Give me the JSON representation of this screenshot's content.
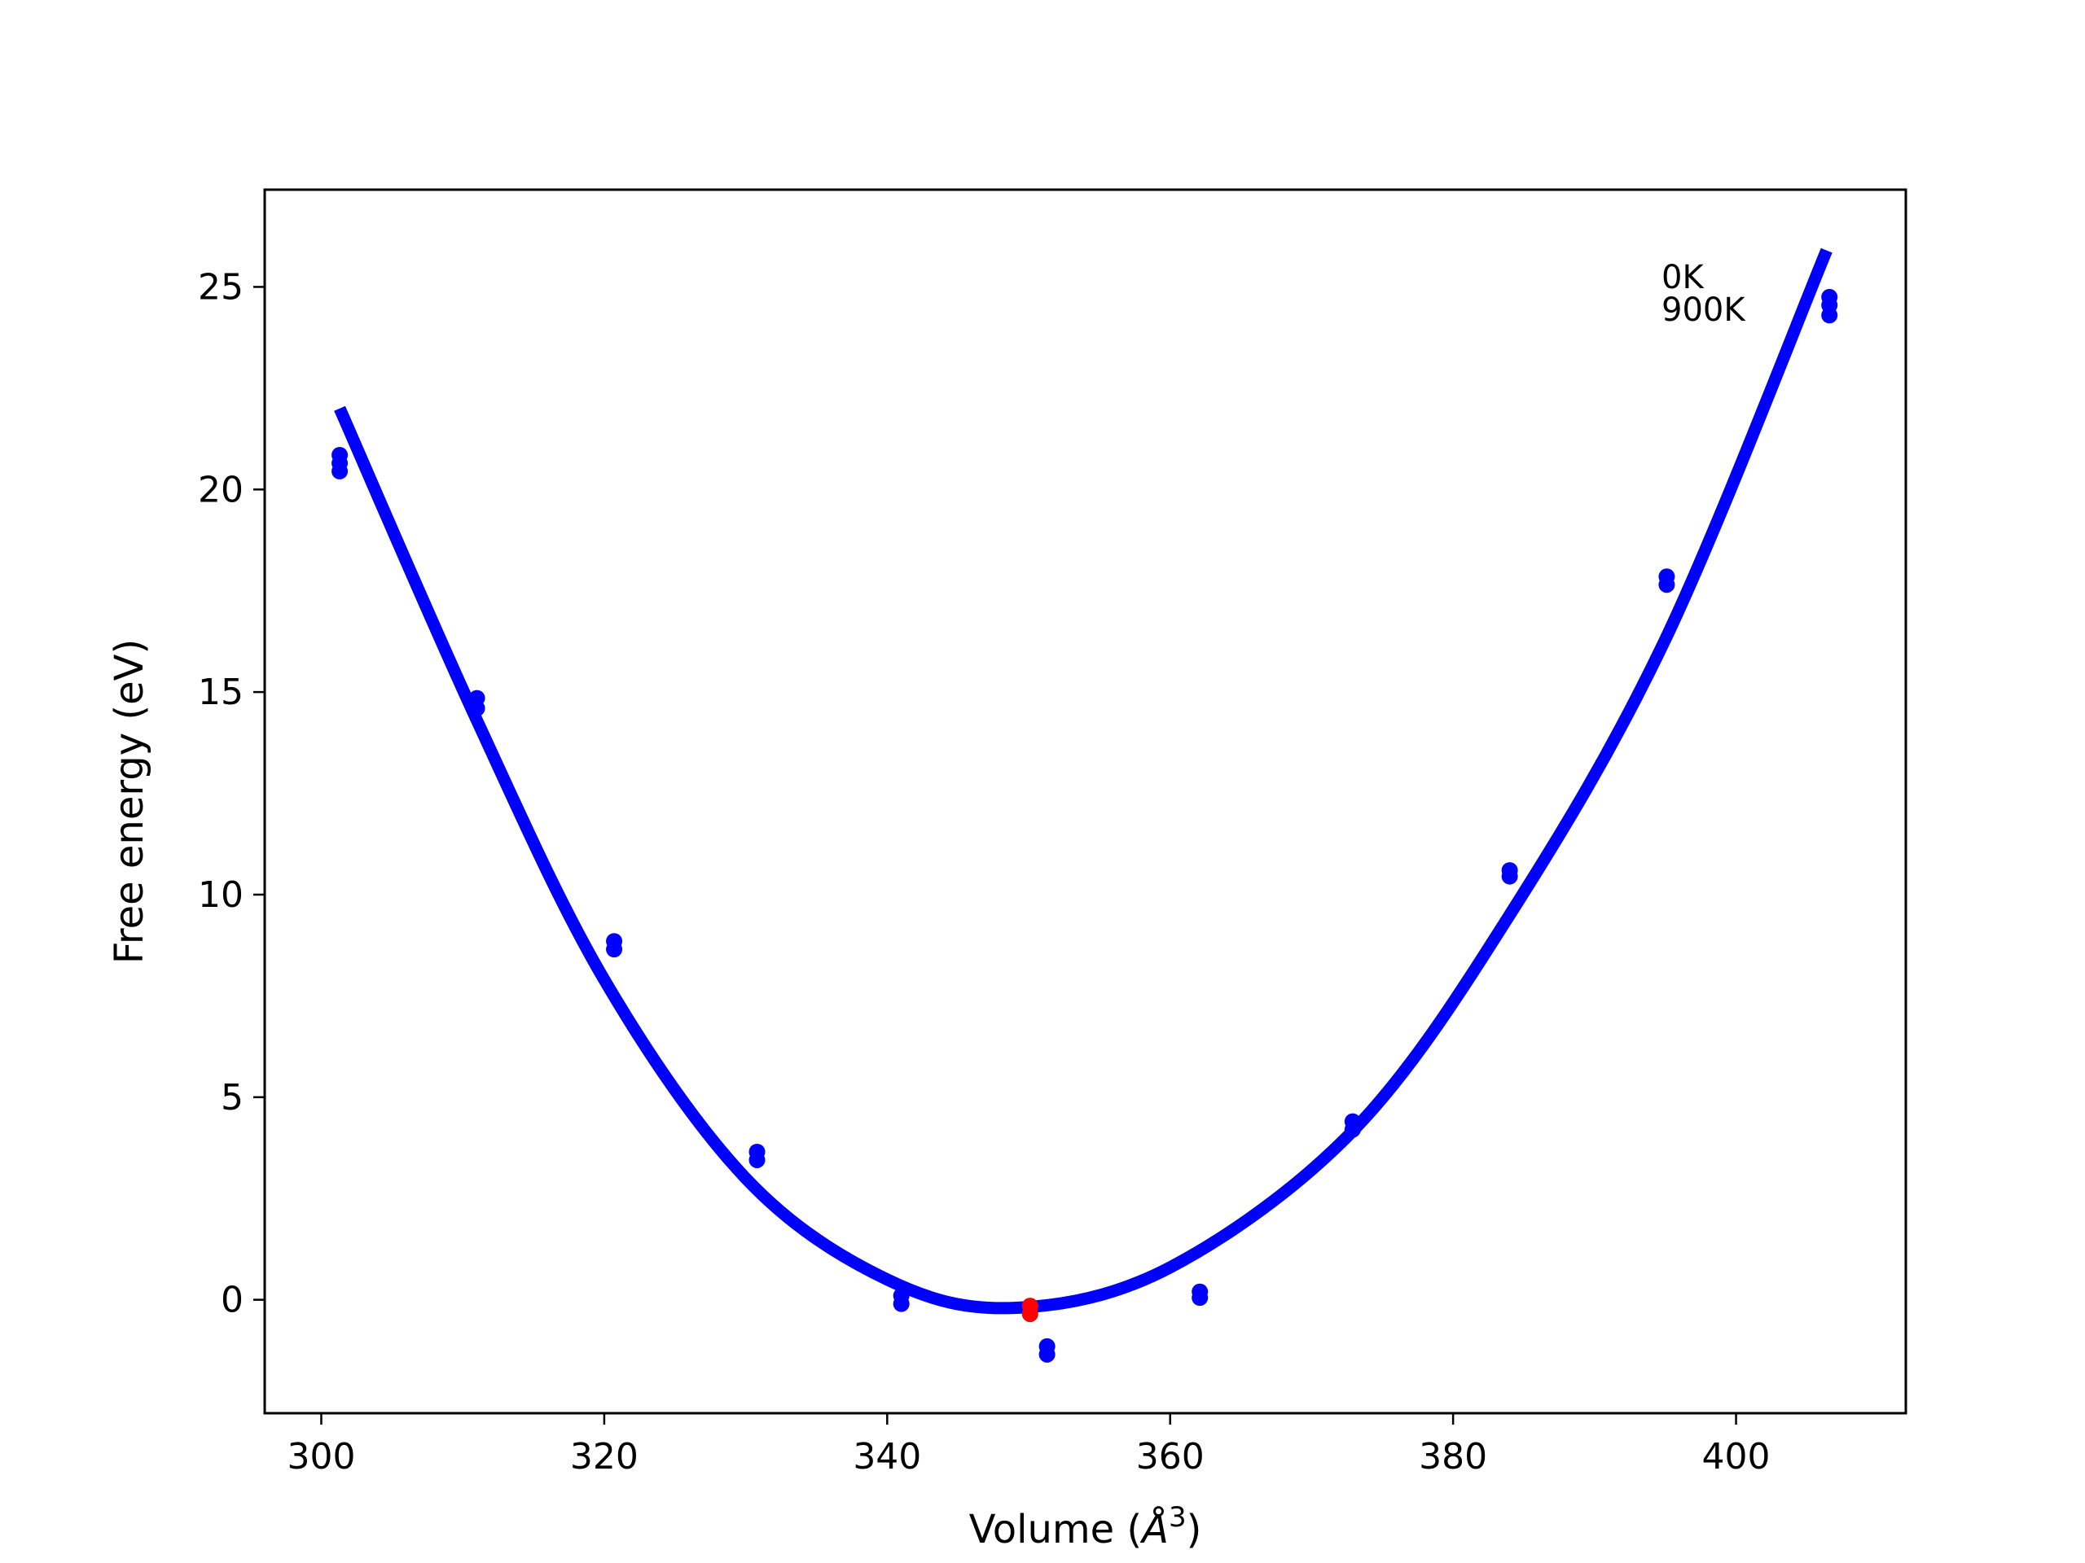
{
  "chart_data": {
    "type": "scatter",
    "title": "",
    "xlabel_prefix": "Volume (",
    "xlabel_symbol": "Å",
    "xlabel_exp": "3",
    "xlabel_suffix": ")",
    "ylabel": "Free energy (eV)",
    "xlim": [
      296,
      412
    ],
    "ylim": [
      -2.8,
      27.4
    ],
    "x_ticks": [
      300,
      320,
      340,
      360,
      380,
      400
    ],
    "y_ticks": [
      0,
      5,
      10,
      15,
      20,
      25
    ],
    "grid": false,
    "legend_position": "top-right",
    "legend": [
      "0K",
      "900K"
    ],
    "fit_curve": {
      "color": "#0000ff",
      "x_range": [
        301.3,
        406.4
      ],
      "points": [
        {
          "x": 301.3,
          "y": 22.0
        },
        {
          "x": 311.0,
          "y": 14.3
        },
        {
          "x": 320.0,
          "y": 7.9
        },
        {
          "x": 330.0,
          "y": 3.0
        },
        {
          "x": 340.0,
          "y": 0.5
        },
        {
          "x": 349.0,
          "y": -0.2
        },
        {
          "x": 360.0,
          "y": 0.8
        },
        {
          "x": 373.0,
          "y": 4.2
        },
        {
          "x": 384.0,
          "y": 9.5
        },
        {
          "x": 395.0,
          "y": 16.3
        },
        {
          "x": 406.4,
          "y": 25.9
        }
      ]
    },
    "series": [
      {
        "color": "#0000ff",
        "points": [
          {
            "x": 301.3,
            "y": 20.45
          },
          {
            "x": 301.3,
            "y": 20.65
          },
          {
            "x": 301.3,
            "y": 20.85
          },
          {
            "x": 311.0,
            "y": 14.6
          },
          {
            "x": 311.0,
            "y": 14.85
          },
          {
            "x": 320.7,
            "y": 8.65
          },
          {
            "x": 320.7,
            "y": 8.85
          },
          {
            "x": 330.8,
            "y": 3.45
          },
          {
            "x": 330.8,
            "y": 3.65
          },
          {
            "x": 341.0,
            "y": -0.1
          },
          {
            "x": 341.0,
            "y": 0.1
          },
          {
            "x": 351.3,
            "y": -1.35
          },
          {
            "x": 351.3,
            "y": -1.15
          },
          {
            "x": 362.1,
            "y": 0.05
          },
          {
            "x": 362.1,
            "y": 0.2
          },
          {
            "x": 372.9,
            "y": 4.2
          },
          {
            "x": 372.9,
            "y": 4.4
          },
          {
            "x": 384.0,
            "y": 10.45
          },
          {
            "x": 384.0,
            "y": 10.6
          },
          {
            "x": 395.1,
            "y": 17.65
          },
          {
            "x": 395.1,
            "y": 17.85
          },
          {
            "x": 406.6,
            "y": 24.3
          },
          {
            "x": 406.6,
            "y": 24.55
          },
          {
            "x": 406.6,
            "y": 24.75
          }
        ]
      }
    ],
    "minimum_marker": {
      "color": "#ff0000",
      "x": 350.1,
      "y": -0.15
    }
  }
}
